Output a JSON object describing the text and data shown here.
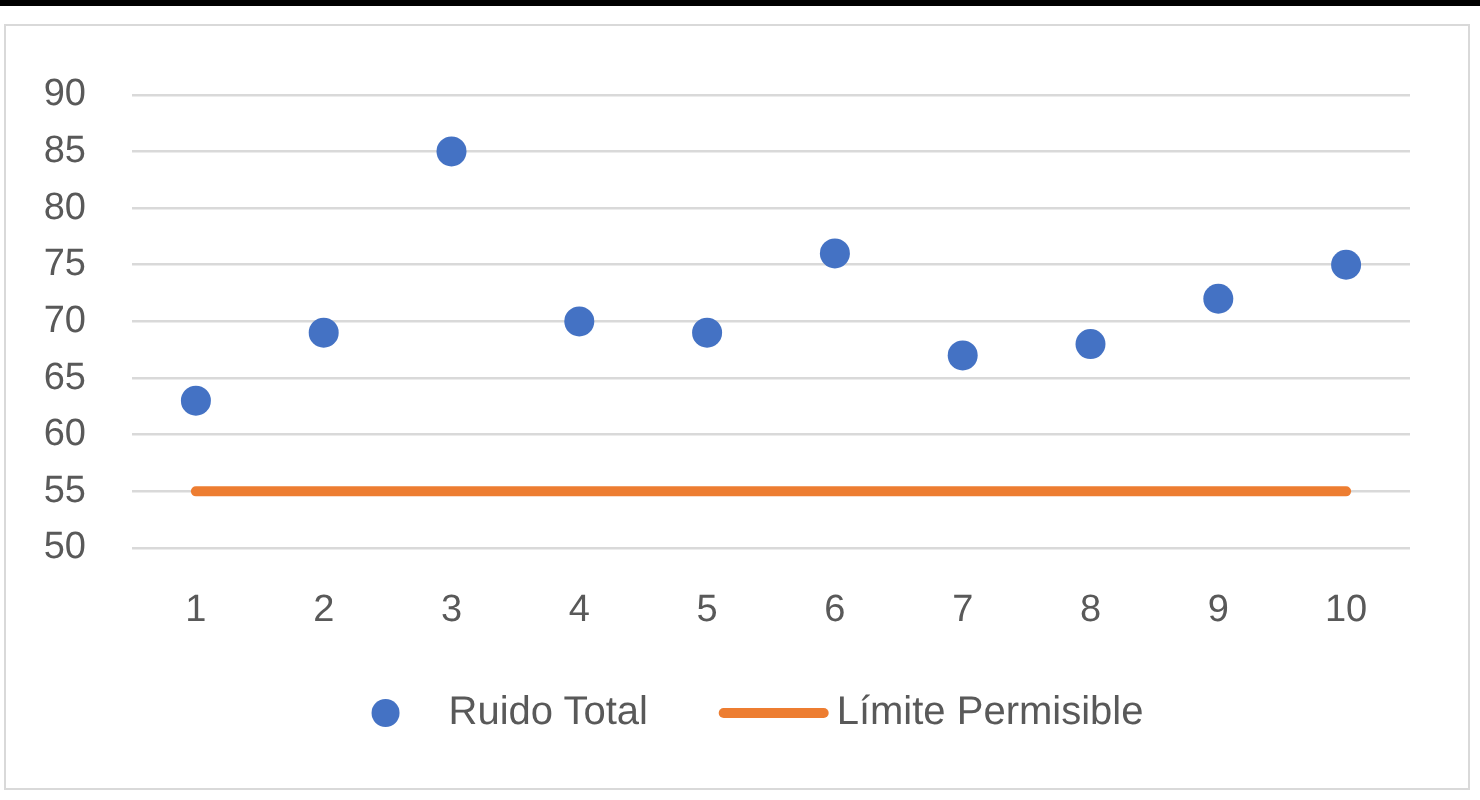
{
  "chart_data": {
    "type": "scatter",
    "categories": [
      "1",
      "2",
      "3",
      "4",
      "5",
      "6",
      "7",
      "8",
      "9",
      "10"
    ],
    "series": [
      {
        "name": "Ruido Total",
        "color": "#4472c4",
        "marker": "circle",
        "values": [
          63,
          69,
          85,
          70,
          69,
          76,
          67,
          68,
          72,
          75
        ]
      },
      {
        "name": "Límite Permisible",
        "type": "line",
        "color": "#ed7d31",
        "marker": "none",
        "values": [
          55,
          55,
          55,
          55,
          55,
          55,
          55,
          55,
          55,
          55
        ]
      }
    ],
    "ylim": [
      50,
      90
    ],
    "yticks": [
      50,
      55,
      60,
      65,
      70,
      75,
      80,
      85,
      90
    ],
    "grid": "y",
    "legend": "bottom"
  }
}
